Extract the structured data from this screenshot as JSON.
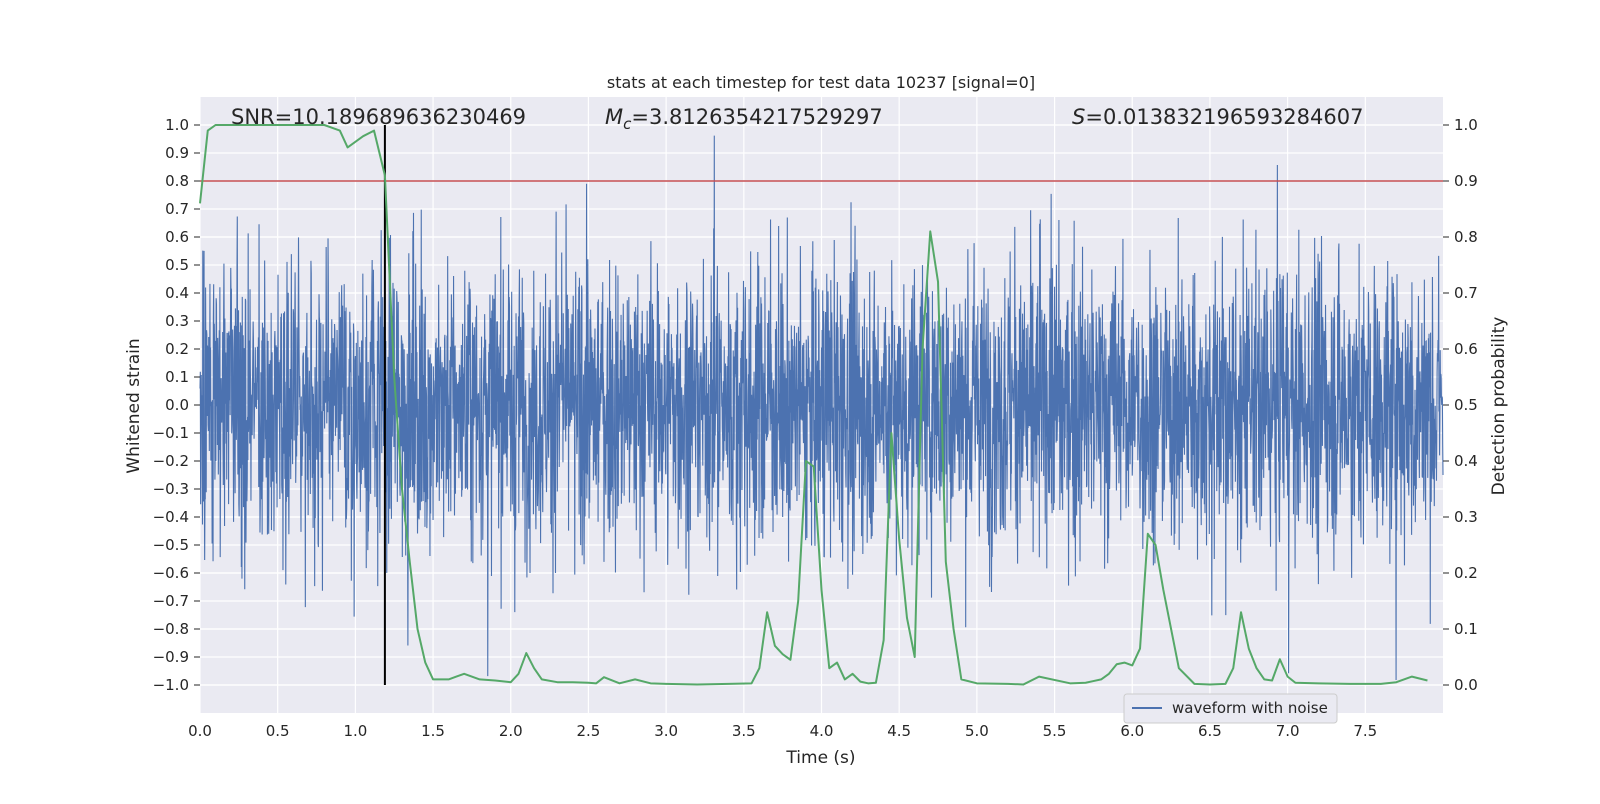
{
  "chart_data": {
    "type": "line",
    "title": "stats at each timestep for test data 10237 [signal=0]",
    "xlabel": "Time (s)",
    "ylabel_left": "Whitened strain",
    "ylabel_right": "Detection probability",
    "xlim": [
      0,
      8
    ],
    "ylim_left": [
      -1.1,
      1.1
    ],
    "ylim_right": [
      -0.05,
      1.05
    ],
    "x_ticks": [
      0.0,
      0.5,
      1.0,
      1.5,
      2.0,
      2.5,
      3.0,
      3.5,
      4.0,
      4.5,
      5.0,
      5.5,
      6.0,
      6.5,
      7.0,
      7.5
    ],
    "x_tick_labels": [
      "0.0",
      "0.5",
      "1.0",
      "1.5",
      "2.0",
      "2.5",
      "3.0",
      "3.5",
      "4.0",
      "4.5",
      "5.0",
      "5.5",
      "6.0",
      "6.5",
      "7.0",
      "7.5"
    ],
    "y_left_ticks": [
      1.0,
      0.9,
      0.8,
      0.7,
      0.6,
      0.5,
      0.4,
      0.3,
      0.2,
      0.1,
      0.0,
      -0.1,
      -0.2,
      -0.3,
      -0.4,
      -0.5,
      -0.6,
      -0.7,
      -0.8,
      -0.9,
      -1.0
    ],
    "y_left_tick_labels": [
      "1.0",
      "0.9",
      "0.8",
      "0.7",
      "0.6",
      "0.5",
      "0.4",
      "0.3",
      "0.2",
      "0.1",
      "0.0",
      "−0.1",
      "−0.2",
      "−0.3",
      "−0.4",
      "−0.5",
      "−0.6",
      "−0.7",
      "−0.8",
      "−0.9",
      "−1.0"
    ],
    "y_right_ticks": [
      1.0,
      0.9,
      0.8,
      0.7,
      0.6,
      0.5,
      0.4,
      0.3,
      0.2,
      0.1,
      0.0
    ],
    "y_right_tick_labels": [
      "1.0",
      "0.9",
      "0.8",
      "0.7",
      "0.6",
      "0.5",
      "0.4",
      "0.3",
      "0.2",
      "0.1",
      "0.0"
    ],
    "grid": true,
    "annotations": {
      "snr": "SNR=10.189689636230469",
      "mc_symbol": "M",
      "mc_sub": "c",
      "mc_value": "=3.8126354217529297",
      "s_symbol": "S",
      "s_value": "=0.013832196593284607"
    },
    "threshold_line": {
      "axis": "right",
      "value": 0.9,
      "color": "#c44e52"
    },
    "vertical_line": {
      "x": 1.19,
      "ymin": -1.0,
      "ymax": 1.0,
      "color": "#000000"
    },
    "series": [
      {
        "name": "waveform with noise",
        "axis": "left",
        "color": "#4c72b0",
        "style": "dense noise",
        "typical_amplitude": 0.4,
        "envelope_max": 1.0
      },
      {
        "name": "detection probability",
        "axis": "right",
        "color": "#55a868",
        "x": [
          0.0,
          0.05,
          0.1,
          0.2,
          0.3,
          0.4,
          0.5,
          0.6,
          0.7,
          0.8,
          0.9,
          0.95,
          1.0,
          1.05,
          1.12,
          1.19,
          1.25,
          1.3,
          1.35,
          1.4,
          1.45,
          1.5,
          1.6,
          1.65,
          1.7,
          1.8,
          1.9,
          2.0,
          2.05,
          2.1,
          2.15,
          2.2,
          2.3,
          2.4,
          2.5,
          2.55,
          2.6,
          2.7,
          2.8,
          2.9,
          3.0,
          3.2,
          3.4,
          3.55,
          3.6,
          3.65,
          3.7,
          3.75,
          3.8,
          3.85,
          3.9,
          3.95,
          4.0,
          4.05,
          4.1,
          4.15,
          4.2,
          4.25,
          4.3,
          4.35,
          4.4,
          4.45,
          4.5,
          4.55,
          4.6,
          4.65,
          4.7,
          4.75,
          4.8,
          4.85,
          4.9,
          5.0,
          5.2,
          5.3,
          5.4,
          5.6,
          5.7,
          5.75,
          5.8,
          5.85,
          5.9,
          5.95,
          6.0,
          6.05,
          6.1,
          6.15,
          6.2,
          6.3,
          6.4,
          6.5,
          6.6,
          6.65,
          6.7,
          6.75,
          6.8,
          6.85,
          6.9,
          6.95,
          7.0,
          7.05,
          7.2,
          7.4,
          7.6,
          7.7,
          7.8,
          7.9
        ],
        "values": [
          0.86,
          0.99,
          1.0,
          1.0,
          1.0,
          1.0,
          1.0,
          1.0,
          1.0,
          1.0,
          0.99,
          0.96,
          0.97,
          0.98,
          0.99,
          0.91,
          0.55,
          0.35,
          0.22,
          0.1,
          0.04,
          0.01,
          0.01,
          0.015,
          0.02,
          0.01,
          0.008,
          0.005,
          0.02,
          0.057,
          0.03,
          0.01,
          0.005,
          0.005,
          0.004,
          0.003,
          0.014,
          0.003,
          0.01,
          0.003,
          0.002,
          0.001,
          0.002,
          0.003,
          0.03,
          0.13,
          0.07,
          0.055,
          0.045,
          0.15,
          0.4,
          0.39,
          0.17,
          0.03,
          0.04,
          0.01,
          0.02,
          0.006,
          0.003,
          0.004,
          0.08,
          0.45,
          0.26,
          0.12,
          0.05,
          0.6,
          0.81,
          0.72,
          0.22,
          0.1,
          0.01,
          0.003,
          0.002,
          0.001,
          0.015,
          0.003,
          0.004,
          0.007,
          0.01,
          0.02,
          0.037,
          0.04,
          0.035,
          0.065,
          0.27,
          0.25,
          0.17,
          0.03,
          0.002,
          0.001,
          0.002,
          0.03,
          0.13,
          0.065,
          0.03,
          0.01,
          0.008,
          0.046,
          0.015,
          0.004,
          0.003,
          0.002,
          0.002,
          0.005,
          0.015,
          0.008
        ]
      }
    ],
    "legend": {
      "placement": "lower-right",
      "entries": [
        "waveform with noise"
      ]
    }
  }
}
